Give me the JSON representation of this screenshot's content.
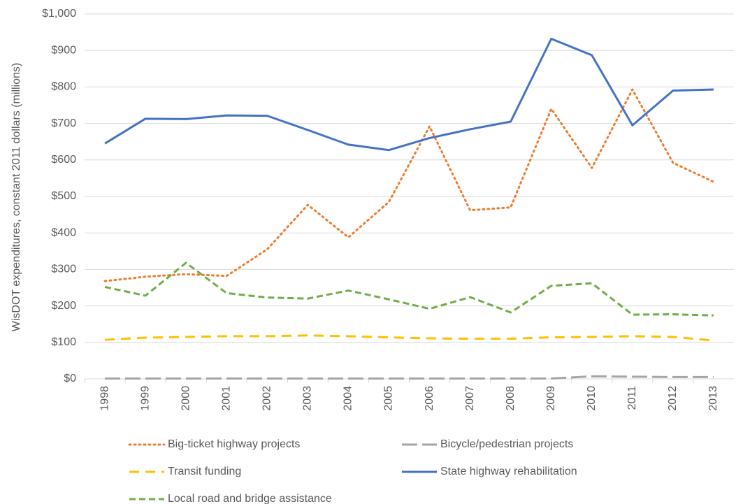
{
  "chart_data": {
    "type": "line",
    "ylabel": "WisDOT expenditures, constant 2011 dollars (millions)",
    "categories": [
      "1998",
      "1999",
      "2000",
      "2001",
      "2002",
      "2003",
      "2004",
      "2005",
      "2006",
      "2007",
      "2008",
      "2009",
      "2010",
      "2011",
      "2012",
      "2013"
    ],
    "series": [
      {
        "name": "Big-ticket highway projects",
        "color": "#ed7d31",
        "dash": "dotted",
        "values": [
          268,
          280,
          287,
          282,
          355,
          477,
          388,
          485,
          692,
          462,
          470,
          740,
          578,
          793,
          592,
          540
        ]
      },
      {
        "name": "Bicycle/pedestrian projects",
        "color": "#a5a5a5",
        "dash": "longdash",
        "values": [
          1,
          1,
          1,
          1,
          1,
          1,
          1,
          1,
          1,
          1,
          1,
          1,
          7,
          6,
          5,
          5
        ]
      },
      {
        "name": "Transit funding",
        "color": "#ffc000",
        "dash": "dash",
        "values": [
          107,
          113,
          115,
          117,
          117,
          119,
          117,
          114,
          111,
          110,
          110,
          114,
          115,
          117,
          115,
          105
        ]
      },
      {
        "name": "State highway rehabilitation",
        "color": "#4472c4",
        "dash": "solid",
        "values": [
          645,
          713,
          712,
          722,
          721,
          682,
          642,
          627,
          660,
          684,
          705,
          932,
          887,
          695,
          790,
          793
        ]
      },
      {
        "name": "Local road and bridge assistance",
        "color": "#70ad47",
        "dash": "shortdash",
        "values": [
          252,
          228,
          318,
          235,
          223,
          220,
          242,
          218,
          192,
          224,
          182,
          255,
          262,
          176,
          177,
          174
        ]
      }
    ],
    "ylim": [
      0,
      1000
    ],
    "yticks": [
      {
        "value": 0,
        "label": "$0"
      },
      {
        "value": 100,
        "label": "$100"
      },
      {
        "value": 200,
        "label": "$200"
      },
      {
        "value": 300,
        "label": "$300"
      },
      {
        "value": 400,
        "label": "$400"
      },
      {
        "value": 500,
        "label": "$500"
      },
      {
        "value": 600,
        "label": "$600"
      },
      {
        "value": 700,
        "label": "$700"
      },
      {
        "value": 800,
        "label": "$800"
      },
      {
        "value": 900,
        "label": "$900"
      },
      {
        "value": 1000,
        "label": "$1,000"
      }
    ],
    "grid": true,
    "legend": "bottom"
  }
}
